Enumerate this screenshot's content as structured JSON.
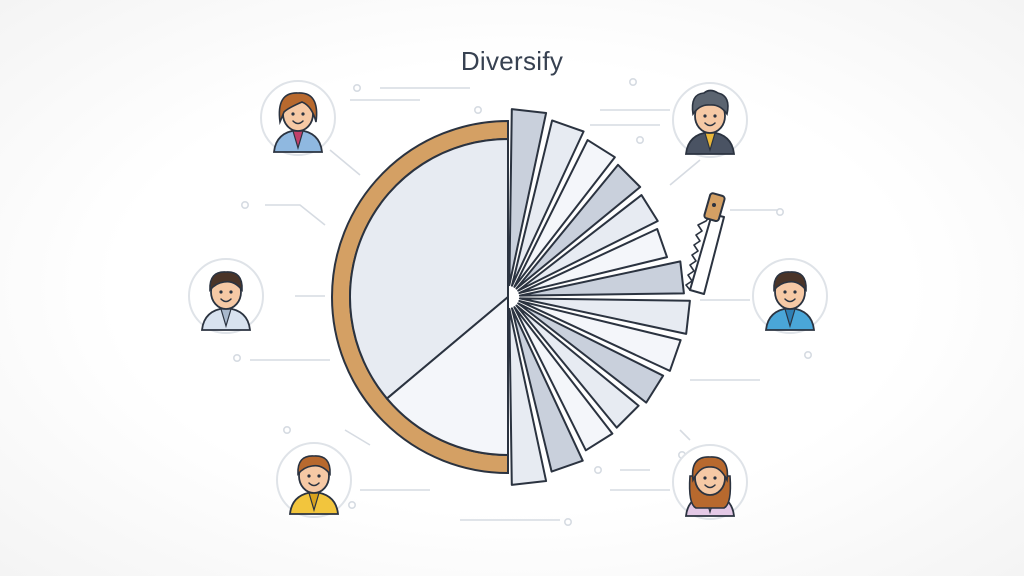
{
  "title": "Diversify",
  "colors": {
    "wood": "#d4a064",
    "wood_dark": "#8a5a2b",
    "slice_fill": "#e7ebf2",
    "slice_light": "#f4f6fa",
    "slice_dark": "#c9d0dc",
    "outline": "#2b3340",
    "connector": "#d6dbe2"
  },
  "people": [
    {
      "name": "woman-top-left-avatar",
      "hair": "#b8692e",
      "skin": "#f6c9a5",
      "shirt": "#8fb8e0",
      "accent": "#c2406a",
      "style": "woman-short"
    },
    {
      "name": "man-top-right-avatar",
      "hair": "#5b6470",
      "skin": "#f6c9a5",
      "shirt": "#4a5363",
      "accent": "#e9b73a",
      "style": "man-curly"
    },
    {
      "name": "man-middle-left-avatar",
      "hair": "#4a3428",
      "skin": "#f6c9a5",
      "shirt": "#d8e2ef",
      "accent": "#a8b8cc",
      "style": "man-short"
    },
    {
      "name": "man-middle-right-avatar",
      "hair": "#4a3428",
      "skin": "#f6c9a5",
      "shirt": "#4aa6d8",
      "accent": "#2f7fb3",
      "style": "man-short"
    },
    {
      "name": "boy-bottom-left-avatar",
      "hair": "#b8692e",
      "skin": "#f6c9a5",
      "shirt": "#f2c53d",
      "accent": "#d9a21c",
      "style": "man-short"
    },
    {
      "name": "woman-bottom-right-avatar",
      "hair": "#b8692e",
      "skin": "#f6c9a5",
      "shirt": "#e4c9e6",
      "accent": "#c8a5cf",
      "style": "woman-long"
    }
  ]
}
